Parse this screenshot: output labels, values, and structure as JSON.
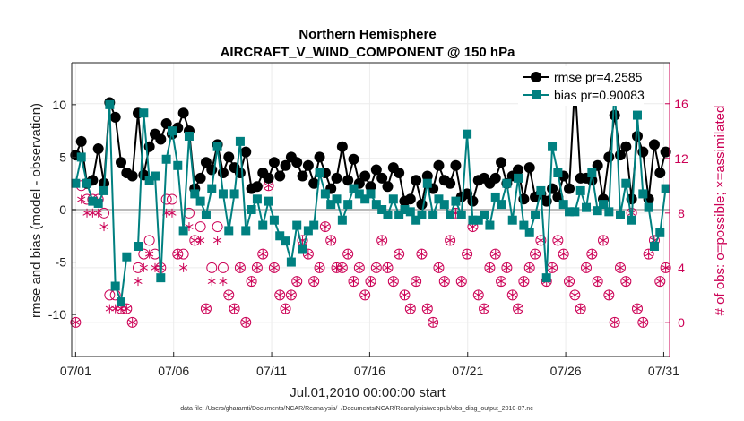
{
  "chart_data": {
    "type": "line",
    "title": "Northern Hemisphere",
    "subtitle": "AIRCRAFT_V_WIND_COMPONENT @ 150 hPa",
    "xlabel": "Jul.01,2010 00:00:00 start",
    "ylabel": "rmse and bias (model - observation)",
    "y2label": "# of obs: o=possible; ×=assimilated",
    "footnote": "data file: /Users/gharamti/Documents/NCAR/Reanalysis/~/Documents/NCAR/Reanalysis/webpub/obs_diag_output_2010-07.nc",
    "xlim": [
      0.8,
      31.3
    ],
    "ylim": [
      -14,
      14
    ],
    "y2lim": [
      -2.5,
      19
    ],
    "x_ticks": [
      1,
      6,
      11,
      16,
      21,
      26,
      31
    ],
    "x_tick_labels": [
      "07/01",
      "07/06",
      "07/11",
      "07/16",
      "07/21",
      "07/26",
      "07/31"
    ],
    "y_ticks": [
      -10,
      -5,
      0,
      5,
      10
    ],
    "y_tick_labels": [
      "-10",
      "-5",
      "0",
      "5",
      "10"
    ],
    "y2_ticks": [
      0,
      4,
      8,
      12,
      16
    ],
    "y2_tick_labels": [
      "0",
      "4",
      "8",
      "12",
      "16"
    ],
    "grid": true,
    "legend_position": "top-right",
    "colors": {
      "rmse": "#000000",
      "bias": "#008080",
      "obs": "#cc0055",
      "zero_line": "#bbbbbb",
      "grid": "#ececec"
    },
    "series": [
      {
        "name": "rmse pr=4.2585",
        "axis": "left",
        "values": [
          5.2,
          6.5,
          2.5,
          2.8,
          5.8,
          2.5,
          10.2,
          8.8,
          4.5,
          3.5,
          3.2,
          9.2,
          3.3,
          6.0,
          7.2,
          6.7,
          8.2,
          7.2,
          7.8,
          9.2,
          7.5,
          2.0,
          3.0,
          4.5,
          3.8,
          6.2,
          3.5,
          5.0,
          4.0,
          3.5,
          5.5,
          2.0,
          2.2,
          3.5,
          3.0,
          4.5,
          3.2,
          4.2,
          5.0,
          4.5,
          3.2,
          4.2,
          2.5,
          5.0,
          3.5,
          2.0,
          3.0,
          6.0,
          2.8,
          4.8,
          2.5,
          3.2,
          2.2,
          3.8,
          3.0,
          2.2,
          4.0,
          3.5,
          0.8,
          1.0,
          2.8,
          0.5,
          3.2,
          2.0,
          4.2,
          2.8,
          2.5,
          4.2,
          1.2,
          1.5,
          0.8,
          2.8,
          3.0,
          2.5,
          3.0,
          4.5,
          2.5,
          3.2,
          3.8,
          1.0,
          4.0,
          1.2,
          1.5,
          0.8,
          2.0,
          1.2,
          3.2,
          2.0,
          12.0,
          3.0,
          3.0,
          2.8,
          4.2,
          1.0,
          5.0,
          9.0,
          5.2,
          6.0,
          1.0,
          7.0,
          5.5,
          1.0,
          6.2,
          3.5,
          5.5
        ]
      },
      {
        "name": "bias pr=0.90083",
        "axis": "left",
        "values": [
          2.5,
          5.0,
          2.5,
          0.8,
          0.6,
          1.8,
          10.0,
          -7.3,
          -8.8,
          -4.5,
          null,
          -3.5,
          9.2,
          2.8,
          3.2,
          -6.5,
          4.8,
          7.5,
          4.2,
          -2.0,
          7.0,
          1.5,
          0.8,
          -0.5,
          2.0,
          6.0,
          1.5,
          -2.0,
          1.5,
          6.5,
          -2.0,
          0.0,
          1.0,
          -1.5,
          0.8,
          -1.0,
          -2.5,
          -3.0,
          -5.0,
          -1.5,
          -3.8,
          -2.0,
          -1.5,
          3.5,
          1.5,
          0.5,
          1.0,
          -1.0,
          0.5,
          2.0,
          1.5,
          1.0,
          1.5,
          0.5,
          0.0,
          -0.5,
          1.0,
          -0.5,
          0.0,
          -0.2,
          -1.0,
          -0.5,
          2.5,
          -0.5,
          1.0,
          0.5,
          -0.5,
          0.8,
          -0.5,
          7.2,
          -1.0,
          -1.0,
          -0.5,
          -1.5,
          1.2,
          0.5,
          2.5,
          -1.0,
          3.0,
          -1.5,
          -2.2,
          -0.5,
          1.8,
          -6.5,
          6.0,
          3.5,
          0.5,
          -0.2,
          -0.2,
          1.8,
          0.2,
          3.5,
          -0.1,
          0.5,
          -0.2,
          12.0,
          -0.5,
          2.5,
          -1.0,
          9.0,
          1.5,
          0.2,
          -3.5,
          -2.2,
          2.0
        ]
      },
      {
        "name": "possible",
        "axis": "right",
        "marker": "circle-open",
        "values": [
          0,
          10,
          9,
          9,
          9,
          8,
          2,
          2,
          1,
          1,
          0,
          4,
          5,
          6,
          5,
          4,
          9,
          9,
          5,
          5,
          8,
          6,
          7,
          1,
          4,
          7,
          4,
          2,
          1,
          4,
          0,
          3,
          4,
          5,
          10,
          4,
          2,
          1,
          2,
          3,
          6,
          5,
          3,
          4,
          7,
          6,
          4,
          4,
          5,
          3,
          4,
          2,
          3,
          4,
          6,
          4,
          3,
          5,
          2,
          1,
          3,
          5,
          1,
          0,
          4,
          3,
          6,
          8,
          3,
          5,
          7,
          2,
          1,
          4,
          5,
          3,
          4,
          2,
          1,
          3,
          4,
          5,
          6,
          3,
          4,
          6,
          5,
          3,
          2,
          1,
          4,
          5,
          3,
          6,
          2,
          0,
          4,
          3,
          8,
          1,
          0,
          5,
          6,
          3,
          4
        ]
      },
      {
        "name": "assimilated",
        "axis": "right",
        "marker": "asterisk",
        "values": [
          0,
          9,
          8,
          8,
          8,
          7,
          1,
          1,
          1,
          1,
          0,
          3,
          4,
          5,
          4,
          4,
          8,
          8,
          5,
          4,
          7,
          6,
          6,
          1,
          3,
          6,
          3,
          2,
          1,
          4,
          0,
          3,
          4,
          5,
          10,
          4,
          2,
          1,
          2,
          3,
          6,
          5,
          3,
          4,
          7,
          6,
          4,
          4,
          5,
          3,
          4,
          2,
          3,
          4,
          6,
          4,
          3,
          5,
          2,
          1,
          3,
          5,
          1,
          0,
          4,
          3,
          6,
          8,
          3,
          5,
          7,
          2,
          1,
          4,
          5,
          3,
          4,
          2,
          1,
          3,
          4,
          5,
          6,
          3,
          4,
          6,
          5,
          3,
          2,
          1,
          4,
          5,
          3,
          6,
          2,
          0,
          4,
          3,
          8,
          1,
          0,
          5,
          6,
          3,
          4
        ]
      }
    ]
  }
}
